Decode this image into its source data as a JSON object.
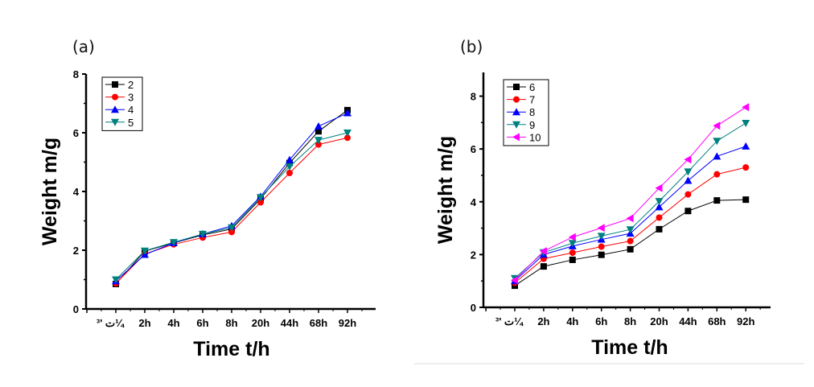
{
  "panels": {
    "a": "(a)",
    "b": "(b)"
  },
  "chart_data": [
    {
      "type": "line",
      "panel": "(a)",
      "xlabel": "Time  t/h",
      "ylabel": "Weight m/g",
      "categories": [
        "³' ت¼",
        "2h",
        "4h",
        "6h",
        "8h",
        "20h",
        "44h",
        "68h",
        "92h"
      ],
      "ylim": [
        0,
        8
      ],
      "yticks": [
        0,
        2,
        4,
        6,
        8
      ],
      "grid": false,
      "legend": "top-left",
      "series": [
        {
          "name": "2",
          "color": "#000000",
          "marker": "square",
          "values": [
            0.85,
            1.97,
            2.25,
            2.52,
            2.72,
            3.75,
            4.97,
            6.05,
            6.77
          ]
        },
        {
          "name": "3",
          "color": "#ff0000",
          "marker": "circle",
          "values": [
            0.87,
            1.87,
            2.2,
            2.43,
            2.62,
            3.63,
            4.63,
            5.6,
            5.83
          ]
        },
        {
          "name": "4",
          "color": "#0000ff",
          "marker": "triangle-up",
          "values": [
            0.95,
            1.85,
            2.25,
            2.55,
            2.83,
            3.83,
            5.08,
            6.22,
            6.67
          ]
        },
        {
          "name": "5",
          "color": "#008080",
          "marker": "triangle-down",
          "values": [
            1.0,
            1.98,
            2.27,
            2.55,
            2.77,
            3.8,
            4.85,
            5.75,
            6.0
          ]
        }
      ]
    },
    {
      "type": "line",
      "panel": "(b)",
      "xlabel": "Time  t/h",
      "ylabel": "Weight  m/g",
      "categories": [
        "³' ت¼",
        "2h",
        "4h",
        "6h",
        "8h",
        "20h",
        "44h",
        "68h",
        "92h"
      ],
      "ylim": [
        0,
        8.9
      ],
      "yticks": [
        0,
        2,
        4,
        6,
        8
      ],
      "grid": false,
      "legend": "top-left",
      "series": [
        {
          "name": "6",
          "color": "#000000",
          "marker": "square",
          "values": [
            0.82,
            1.55,
            1.8,
            1.99,
            2.2,
            2.96,
            3.65,
            4.05,
            4.08
          ]
        },
        {
          "name": "7",
          "color": "#ff0000",
          "marker": "circle",
          "values": [
            0.93,
            1.84,
            2.07,
            2.3,
            2.51,
            3.4,
            4.28,
            5.04,
            5.3
          ]
        },
        {
          "name": "8",
          "color": "#0000ff",
          "marker": "triangle-up",
          "values": [
            1.0,
            2.0,
            2.32,
            2.57,
            2.8,
            3.8,
            4.8,
            5.72,
            6.1
          ]
        },
        {
          "name": "9",
          "color": "#008080",
          "marker": "triangle-down",
          "values": [
            1.1,
            2.08,
            2.43,
            2.7,
            2.95,
            4.02,
            5.14,
            6.3,
            6.98
          ]
        },
        {
          "name": "10",
          "color": "#ff00ff",
          "marker": "triangle-left",
          "values": [
            1.03,
            2.13,
            2.66,
            3.01,
            3.37,
            4.52,
            5.6,
            6.88,
            7.58
          ]
        }
      ]
    }
  ]
}
